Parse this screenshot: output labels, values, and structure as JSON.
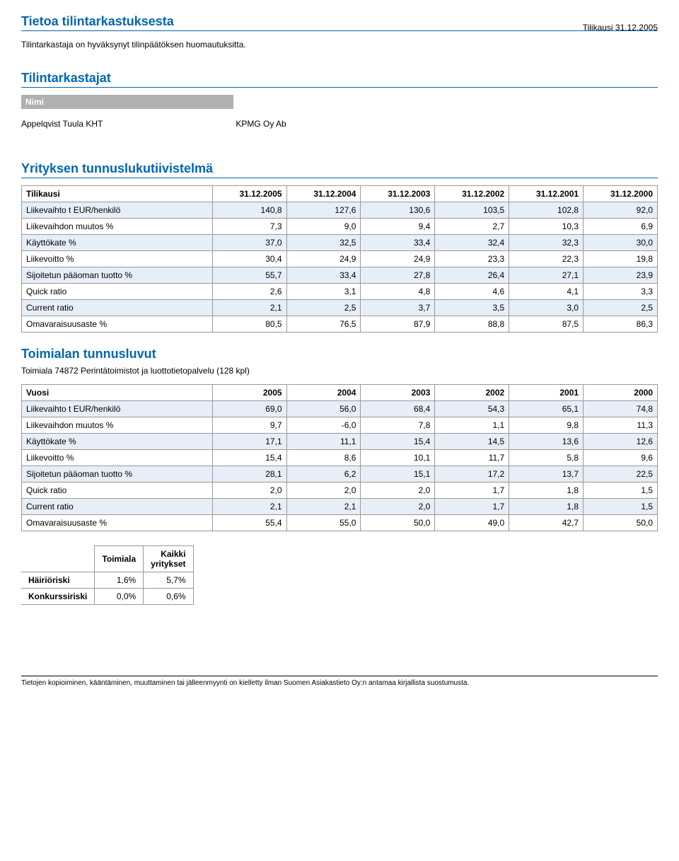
{
  "audit_info": {
    "title": "Tietoa tilintarkastuksesta",
    "period": "Tilikausi 31.12.2005",
    "approval_text": "Tilintarkastaja on hyväksynyt tilinpäätöksen huomautuksitta."
  },
  "auditors": {
    "title": "Tilintarkastajat",
    "name_header": "Nimi",
    "name": "Appelqvist Tuula KHT",
    "firm": "KPMG Oy Ab"
  },
  "company_ratios": {
    "title": "Yrityksen tunnuslukutiivistelmä",
    "header_label": "Tilikausi",
    "columns": [
      "31.12.2005",
      "31.12.2004",
      "31.12.2003",
      "31.12.2002",
      "31.12.2001",
      "31.12.2000"
    ],
    "rows": [
      {
        "label": "Liikevaihto t EUR/henkilö",
        "vals": [
          "140,8",
          "127,6",
          "130,6",
          "103,5",
          "102,8",
          "92,0"
        ]
      },
      {
        "label": "Liikevaihdon muutos %",
        "vals": [
          "7,3",
          "9,0",
          "9,4",
          "2,7",
          "10,3",
          "6,9"
        ]
      },
      {
        "label": "Käyttökate %",
        "vals": [
          "37,0",
          "32,5",
          "33,4",
          "32,4",
          "32,3",
          "30,0"
        ]
      },
      {
        "label": "Liikevoitto %",
        "vals": [
          "30,4",
          "24,9",
          "24,9",
          "23,3",
          "22,3",
          "19,8"
        ]
      },
      {
        "label": "Sijoitetun pääoman tuotto %",
        "vals": [
          "55,7",
          "33,4",
          "27,8",
          "26,4",
          "27,1",
          "23,9"
        ]
      },
      {
        "label": "Quick ratio",
        "vals": [
          "2,6",
          "3,1",
          "4,8",
          "4,6",
          "4,1",
          "3,3"
        ]
      },
      {
        "label": "Current ratio",
        "vals": [
          "2,1",
          "2,5",
          "3,7",
          "3,5",
          "3,0",
          "2,5"
        ]
      },
      {
        "label": "Omavaraisuusaste %",
        "vals": [
          "80,5",
          "76,5",
          "87,9",
          "88,8",
          "87,5",
          "86,3"
        ]
      }
    ]
  },
  "industry_ratios": {
    "title": "Toimialan tunnusluvut",
    "desc": "Toimiala 74872 Perintätoimistot ja luottotietopalvelu (128 kpl)",
    "header_label": "Vuosi",
    "columns": [
      "2005",
      "2004",
      "2003",
      "2002",
      "2001",
      "2000"
    ],
    "rows": [
      {
        "label": "Liikevaihto t EUR/henkilö",
        "vals": [
          "69,0",
          "56,0",
          "68,4",
          "54,3",
          "65,1",
          "74,8"
        ]
      },
      {
        "label": "Liikevaihdon muutos %",
        "vals": [
          "9,7",
          "-6,0",
          "7,8",
          "1,1",
          "9,8",
          "11,3"
        ]
      },
      {
        "label": "Käyttökate %",
        "vals": [
          "17,1",
          "11,1",
          "15,4",
          "14,5",
          "13,6",
          "12,6"
        ]
      },
      {
        "label": "Liikevoitto %",
        "vals": [
          "15,4",
          "8,6",
          "10,1",
          "11,7",
          "5,8",
          "9,6"
        ]
      },
      {
        "label": "Sijoitetun pääoman tuotto %",
        "vals": [
          "28,1",
          "6,2",
          "15,1",
          "17,2",
          "13,7",
          "22,5"
        ]
      },
      {
        "label": "Quick ratio",
        "vals": [
          "2,0",
          "2,0",
          "2,0",
          "1,7",
          "1,8",
          "1,5"
        ]
      },
      {
        "label": "Current ratio",
        "vals": [
          "2,1",
          "2,1",
          "2,0",
          "1,7",
          "1,8",
          "1,5"
        ]
      },
      {
        "label": "Omavaraisuusaste %",
        "vals": [
          "55,4",
          "55,0",
          "50,0",
          "49,0",
          "42,7",
          "50,0"
        ]
      }
    ]
  },
  "risk": {
    "col_industry": "Toimiala",
    "col_all": "Kaikki yritykset",
    "rows": [
      {
        "label": "Häiriöriski",
        "industry": "1,6%",
        "all": "5,7%"
      },
      {
        "label": "Konkurssiriski",
        "industry": "0,0%",
        "all": "0,6%"
      }
    ]
  },
  "footer": "Tietojen kopioiminen, kääntäminen, muuttaminen tai jälleenmyynti on kielletty ilman Suomen Asiakastieto Oy:n antamaa kirjallista suostumusta."
}
